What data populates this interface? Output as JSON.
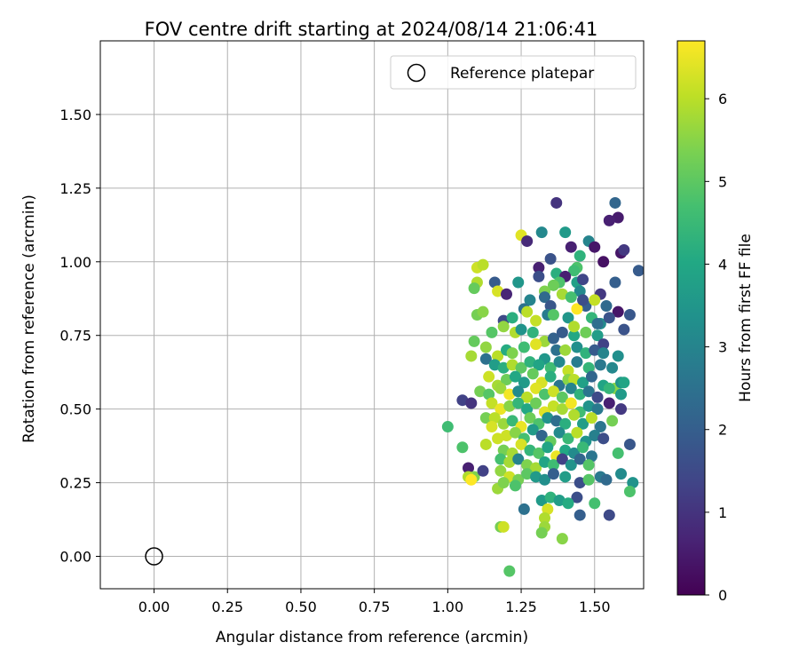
{
  "chart_data": {
    "type": "scatter",
    "title": "FOV centre drift starting at 2024/08/14 21:06:41",
    "xlabel": "Angular distance from reference (arcmin)",
    "ylabel": "Rotation from reference (arcmin)",
    "xlim": [
      -0.183,
      1.667
    ],
    "ylim": [
      -0.11,
      1.75
    ],
    "xticks": [
      "0.00",
      "0.25",
      "0.50",
      "0.75",
      "1.00",
      "1.25",
      "1.50"
    ],
    "yticks": [
      "0.00",
      "0.25",
      "0.50",
      "0.75",
      "1.00",
      "1.25",
      "1.50"
    ],
    "grid": true,
    "legend": {
      "placement": "top-right",
      "label": "Reference platepar"
    },
    "reference_point": {
      "x": 0.0,
      "y": 0.0
    },
    "colorbar": {
      "label": "Hours from first FF file",
      "range": [
        0,
        6.7
      ],
      "ticks": [
        "0",
        "1",
        "2",
        "3",
        "4",
        "5",
        "6"
      ],
      "colormap": "viridis"
    },
    "points": [
      [
        1.37,
        1.2,
        1.0
      ],
      [
        1.57,
        1.2,
        2.2
      ],
      [
        1.58,
        1.15,
        0.5
      ],
      [
        1.55,
        1.14,
        0.6
      ],
      [
        1.25,
        1.09,
        6.4
      ],
      [
        1.27,
        1.07,
        0.8
      ],
      [
        1.32,
        1.1,
        3.1
      ],
      [
        1.4,
        1.1,
        3.6
      ],
      [
        1.42,
        1.05,
        0.6
      ],
      [
        1.48,
        1.07,
        3.0
      ],
      [
        1.5,
        1.05,
        0.4
      ],
      [
        1.59,
        1.03,
        0.4
      ],
      [
        1.6,
        1.04,
        1.1
      ],
      [
        1.53,
        1.0,
        0.3
      ],
      [
        1.45,
        1.02,
        4.3
      ],
      [
        1.35,
        1.01,
        1.7
      ],
      [
        1.31,
        0.98,
        0.6
      ],
      [
        1.31,
        0.95,
        1.6
      ],
      [
        1.37,
        0.96,
        4.2
      ],
      [
        1.44,
        0.98,
        4.8
      ],
      [
        1.43,
        0.97,
        4.6
      ],
      [
        1.65,
        0.97,
        1.9
      ],
      [
        1.57,
        0.93,
        2.0
      ],
      [
        1.52,
        0.89,
        1.1
      ],
      [
        1.1,
        0.98,
        6.2
      ],
      [
        1.12,
        0.99,
        6.0
      ],
      [
        1.1,
        0.93,
        5.9
      ],
      [
        1.16,
        0.93,
        1.9
      ],
      [
        1.17,
        0.9,
        6.3
      ],
      [
        1.2,
        0.89,
        0.7
      ],
      [
        1.24,
        0.93,
        3.5
      ],
      [
        1.4,
        0.95,
        0.6
      ],
      [
        1.44,
        0.93,
        3.8
      ],
      [
        1.46,
        0.94,
        1.4
      ],
      [
        1.38,
        0.93,
        4.8
      ],
      [
        1.36,
        0.92,
        5.2
      ],
      [
        1.33,
        0.9,
        5.4
      ],
      [
        1.28,
        0.87,
        3.0
      ],
      [
        1.26,
        0.84,
        2.5
      ],
      [
        1.33,
        0.88,
        2.3
      ],
      [
        1.35,
        0.85,
        1.8
      ],
      [
        1.39,
        0.89,
        5.8
      ],
      [
        1.45,
        0.9,
        3.1
      ],
      [
        1.42,
        0.88,
        4.7
      ],
      [
        1.47,
        0.85,
        2.0
      ],
      [
        1.5,
        0.87,
        6.1
      ],
      [
        1.54,
        0.85,
        2.3
      ],
      [
        1.58,
        0.83,
        0.4
      ],
      [
        1.62,
        0.82,
        1.8
      ],
      [
        1.09,
        0.91,
        5.1
      ],
      [
        1.1,
        0.82,
        5.3
      ],
      [
        1.12,
        0.83,
        5.5
      ],
      [
        1.19,
        0.8,
        1.5
      ],
      [
        1.22,
        0.81,
        4.2
      ],
      [
        1.27,
        0.83,
        6.0
      ],
      [
        1.3,
        0.8,
        6.1
      ],
      [
        1.34,
        0.82,
        2.8
      ],
      [
        1.36,
        0.82,
        4.9
      ],
      [
        1.41,
        0.81,
        3.5
      ],
      [
        1.44,
        0.84,
        6.7
      ],
      [
        1.49,
        0.81,
        4.4
      ],
      [
        1.52,
        0.79,
        3.2
      ],
      [
        1.55,
        0.81,
        1.7
      ],
      [
        1.6,
        0.77,
        1.7
      ],
      [
        1.15,
        0.76,
        4.9
      ],
      [
        1.19,
        0.78,
        5.6
      ],
      [
        1.23,
        0.76,
        5.9
      ],
      [
        1.25,
        0.77,
        3.4
      ],
      [
        1.29,
        0.76,
        4.3
      ],
      [
        1.33,
        0.73,
        5.7
      ],
      [
        1.36,
        0.74,
        2.1
      ],
      [
        1.39,
        0.76,
        1.9
      ],
      [
        1.43,
        0.75,
        4.0
      ],
      [
        1.47,
        0.76,
        5.2
      ],
      [
        1.51,
        0.75,
        3.7
      ],
      [
        1.53,
        0.72,
        1.3
      ],
      [
        1.09,
        0.73,
        5.1
      ],
      [
        1.13,
        0.71,
        5.6
      ],
      [
        1.17,
        0.68,
        6.0
      ],
      [
        1.2,
        0.7,
        4.1
      ],
      [
        1.22,
        0.69,
        5.4
      ],
      [
        1.26,
        0.71,
        4.6
      ],
      [
        1.3,
        0.72,
        6.4
      ],
      [
        1.33,
        0.67,
        3.5
      ],
      [
        1.37,
        0.7,
        2.5
      ],
      [
        1.4,
        0.7,
        5.7
      ],
      [
        1.44,
        0.71,
        3.3
      ],
      [
        1.47,
        0.69,
        4.3
      ],
      [
        1.5,
        0.7,
        1.9
      ],
      [
        1.53,
        0.69,
        3.0
      ],
      [
        1.58,
        0.68,
        3.3
      ],
      [
        1.08,
        0.68,
        5.8
      ],
      [
        1.13,
        0.67,
        2.5
      ],
      [
        1.16,
        0.65,
        3.7
      ],
      [
        1.19,
        0.64,
        4.2
      ],
      [
        1.22,
        0.65,
        5.9
      ],
      [
        1.25,
        0.64,
        5.0
      ],
      [
        1.28,
        0.66,
        4.3
      ],
      [
        1.31,
        0.65,
        3.9
      ],
      [
        1.35,
        0.64,
        4.6
      ],
      [
        1.38,
        0.66,
        3.1
      ],
      [
        1.41,
        0.63,
        6.1
      ],
      [
        1.44,
        0.66,
        2.8
      ],
      [
        1.48,
        0.64,
        4.4
      ],
      [
        1.52,
        0.65,
        2.7
      ],
      [
        1.56,
        0.64,
        3.1
      ],
      [
        1.14,
        0.61,
        6.2
      ],
      [
        1.17,
        0.58,
        5.8
      ],
      [
        1.2,
        0.6,
        5.2
      ],
      [
        1.23,
        0.61,
        4.0
      ],
      [
        1.26,
        0.59,
        3.6
      ],
      [
        1.29,
        0.62,
        5.1
      ],
      [
        1.32,
        0.59,
        6.3
      ],
      [
        1.35,
        0.61,
        4.2
      ],
      [
        1.38,
        0.58,
        2.6
      ],
      [
        1.41,
        0.6,
        5.5
      ],
      [
        1.43,
        0.6,
        6.0
      ],
      [
        1.46,
        0.59,
        3.8
      ],
      [
        1.49,
        0.61,
        2.2
      ],
      [
        1.53,
        0.58,
        3.9
      ],
      [
        1.57,
        0.57,
        5.5
      ],
      [
        1.59,
        0.59,
        3.4
      ],
      [
        1.11,
        0.56,
        5.3
      ],
      [
        1.14,
        0.55,
        4.9
      ],
      [
        1.18,
        0.57,
        5.7
      ],
      [
        1.21,
        0.55,
        6.6
      ],
      [
        1.24,
        0.56,
        3.2
      ],
      [
        1.27,
        0.54,
        6.0
      ],
      [
        1.3,
        0.57,
        6.4
      ],
      [
        1.33,
        0.55,
        4.8
      ],
      [
        1.36,
        0.56,
        6.2
      ],
      [
        1.39,
        0.54,
        5.0
      ],
      [
        1.42,
        0.57,
        3.0
      ],
      [
        1.45,
        0.55,
        4.3
      ],
      [
        1.48,
        0.56,
        2.6
      ],
      [
        1.51,
        0.54,
        1.5
      ],
      [
        1.55,
        0.57,
        4.4
      ],
      [
        1.59,
        0.55,
        3.6
      ],
      [
        1.05,
        0.53,
        1.3
      ],
      [
        1.08,
        0.52,
        1.0
      ],
      [
        1.15,
        0.52,
        6.1
      ],
      [
        1.18,
        0.5,
        6.5
      ],
      [
        1.21,
        0.51,
        5.5
      ],
      [
        1.24,
        0.52,
        4.4
      ],
      [
        1.27,
        0.5,
        4.0
      ],
      [
        1.3,
        0.52,
        5.2
      ],
      [
        1.33,
        0.49,
        6.4
      ],
      [
        1.36,
        0.51,
        6.1
      ],
      [
        1.39,
        0.5,
        5.8
      ],
      [
        1.42,
        0.52,
        6.6
      ],
      [
        1.45,
        0.49,
        4.6
      ],
      [
        1.48,
        0.51,
        3.4
      ],
      [
        1.51,
        0.5,
        2.7
      ],
      [
        1.55,
        0.52,
        0.6
      ],
      [
        1.59,
        0.5,
        1.1
      ],
      [
        1.13,
        0.47,
        5.3
      ],
      [
        1.16,
        0.47,
        6.0
      ],
      [
        1.19,
        0.45,
        5.7
      ],
      [
        1.22,
        0.46,
        4.5
      ],
      [
        1.25,
        0.44,
        6.5
      ],
      [
        1.28,
        0.47,
        5.2
      ],
      [
        1.31,
        0.45,
        4.8
      ],
      [
        1.34,
        0.47,
        3.4
      ],
      [
        1.37,
        0.46,
        2.4
      ],
      [
        1.4,
        0.45,
        4.2
      ],
      [
        1.43,
        0.48,
        5.9
      ],
      [
        1.46,
        0.45,
        3.7
      ],
      [
        1.49,
        0.47,
        6.0
      ],
      [
        1.52,
        0.44,
        2.6
      ],
      [
        1.56,
        0.46,
        5.3
      ],
      [
        1.0,
        0.44,
        4.6
      ],
      [
        1.15,
        0.44,
        6.3
      ],
      [
        1.2,
        0.41,
        6.2
      ],
      [
        1.23,
        0.42,
        5.5
      ],
      [
        1.26,
        0.4,
        4.7
      ],
      [
        1.29,
        0.43,
        3.6
      ],
      [
        1.32,
        0.41,
        2.2
      ],
      [
        1.35,
        0.39,
        5.1
      ],
      [
        1.38,
        0.42,
        3.2
      ],
      [
        1.41,
        0.4,
        4.5
      ],
      [
        1.44,
        0.42,
        6.0
      ],
      [
        1.47,
        0.39,
        3.4
      ],
      [
        1.5,
        0.41,
        2.9
      ],
      [
        1.53,
        0.4,
        1.6
      ],
      [
        1.05,
        0.37,
        4.8
      ],
      [
        1.13,
        0.38,
        6.0
      ],
      [
        1.17,
        0.4,
        6.2
      ],
      [
        1.19,
        0.36,
        5.3
      ],
      [
        1.22,
        0.35,
        5.8
      ],
      [
        1.25,
        0.38,
        6.3
      ],
      [
        1.28,
        0.36,
        4.4
      ],
      [
        1.31,
        0.35,
        4.9
      ],
      [
        1.34,
        0.37,
        3.9
      ],
      [
        1.37,
        0.34,
        6.5
      ],
      [
        1.4,
        0.36,
        4.0
      ],
      [
        1.43,
        0.35,
        3.2
      ],
      [
        1.46,
        0.37,
        4.5
      ],
      [
        1.49,
        0.34,
        2.6
      ],
      [
        1.58,
        0.35,
        4.7
      ],
      [
        1.62,
        0.38,
        1.8
      ],
      [
        1.18,
        0.33,
        4.7
      ],
      [
        1.21,
        0.32,
        5.8
      ],
      [
        1.24,
        0.33,
        3.0
      ],
      [
        1.27,
        0.31,
        5.4
      ],
      [
        1.3,
        0.3,
        5.8
      ],
      [
        1.33,
        0.32,
        3.9
      ],
      [
        1.36,
        0.31,
        4.6
      ],
      [
        1.39,
        0.33,
        1.3
      ],
      [
        1.42,
        0.31,
        3.4
      ],
      [
        1.45,
        0.33,
        2.2
      ],
      [
        1.48,
        0.31,
        4.9
      ],
      [
        1.07,
        0.3,
        0.6
      ],
      [
        1.09,
        0.27,
        5.4
      ],
      [
        1.12,
        0.29,
        1.3
      ],
      [
        1.18,
        0.29,
        5.6
      ],
      [
        1.21,
        0.27,
        6.2
      ],
      [
        1.24,
        0.26,
        5.3
      ],
      [
        1.27,
        0.28,
        5.0
      ],
      [
        1.3,
        0.27,
        3.6
      ],
      [
        1.33,
        0.26,
        3.3
      ],
      [
        1.36,
        0.28,
        2.0
      ],
      [
        1.4,
        0.27,
        3.7
      ],
      [
        1.45,
        0.25,
        1.6
      ],
      [
        1.48,
        0.26,
        4.9
      ],
      [
        1.52,
        0.27,
        2.7
      ],
      [
        1.54,
        0.26,
        2.3
      ],
      [
        1.59,
        0.28,
        3.2
      ],
      [
        1.63,
        0.25,
        3.4
      ],
      [
        1.07,
        0.27,
        5.9
      ],
      [
        1.08,
        0.26,
        6.7
      ],
      [
        1.17,
        0.23,
        5.7
      ],
      [
        1.19,
        0.25,
        5.4
      ],
      [
        1.23,
        0.24,
        4.8
      ],
      [
        1.32,
        0.19,
        3.6
      ],
      [
        1.35,
        0.2,
        4.3
      ],
      [
        1.38,
        0.19,
        3.7
      ],
      [
        1.44,
        0.2,
        1.6
      ],
      [
        1.41,
        0.18,
        4.1
      ],
      [
        1.5,
        0.18,
        4.7
      ],
      [
        1.62,
        0.22,
        4.8
      ],
      [
        1.34,
        0.16,
        6.3
      ],
      [
        1.33,
        0.13,
        5.9
      ],
      [
        1.26,
        0.16,
        2.5
      ],
      [
        1.45,
        0.14,
        2.0
      ],
      [
        1.55,
        0.14,
        1.5
      ],
      [
        1.33,
        0.1,
        5.7
      ],
      [
        1.32,
        0.08,
        5.3
      ],
      [
        1.39,
        0.06,
        5.5
      ],
      [
        1.18,
        0.1,
        5.3
      ],
      [
        1.19,
        0.1,
        6.2
      ],
      [
        1.21,
        -0.05,
        4.9
      ],
      [
        1.6,
        0.59,
        3.9
      ],
      [
        1.51,
        0.79,
        2.4
      ],
      [
        1.46,
        0.87,
        1.6
      ],
      [
        1.43,
        0.78,
        5.9
      ]
    ]
  }
}
